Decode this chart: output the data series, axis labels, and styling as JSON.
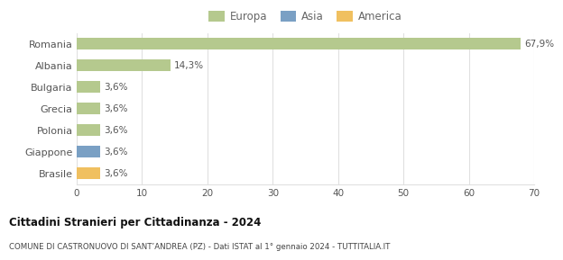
{
  "categories": [
    "Romania",
    "Albania",
    "Bulgaria",
    "Grecia",
    "Polonia",
    "Giappone",
    "Brasile"
  ],
  "values": [
    67.9,
    14.3,
    3.6,
    3.6,
    3.6,
    3.6,
    3.6
  ],
  "bar_colors": [
    "#b5c98e",
    "#b5c98e",
    "#b5c98e",
    "#b5c98e",
    "#b5c98e",
    "#7aa0c4",
    "#f0c060"
  ],
  "labels": [
    "67,9%",
    "14,3%",
    "3,6%",
    "3,6%",
    "3,6%",
    "3,6%",
    "3,6%"
  ],
  "legend_items": [
    {
      "label": "Europa",
      "color": "#b5c98e"
    },
    {
      "label": "Asia",
      "color": "#7aa0c4"
    },
    {
      "label": "America",
      "color": "#f0c060"
    }
  ],
  "title": "Cittadini Stranieri per Cittadinanza - 2024",
  "subtitle": "COMUNE DI CASTRONUOVO DI SANT’ANDREA (PZ) - Dati ISTAT al 1° gennaio 2024 - TUTTITALIA.IT",
  "xlim": [
    0,
    70
  ],
  "xticks": [
    0,
    10,
    20,
    30,
    40,
    50,
    60,
    70
  ],
  "bg_color": "#ffffff",
  "grid_color": "#e0e0e0",
  "bar_height": 0.55
}
